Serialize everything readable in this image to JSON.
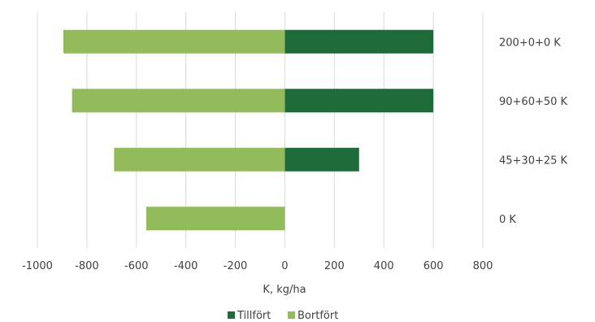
{
  "chart_data": {
    "type": "bar",
    "orientation": "horizontal",
    "stacked": true,
    "categories": [
      "200+0+0 K",
      "90+60+50 K",
      "45+30+25 K",
      "0 K"
    ],
    "series": [
      {
        "name": "Tillfört",
        "color": "#1e6b3a",
        "values": [
          600,
          600,
          300,
          0
        ]
      },
      {
        "name": "Bortfört",
        "color": "#92bb5b",
        "values": [
          -895,
          -860,
          -690,
          -560
        ]
      }
    ],
    "xlabel": "K, kg/ha",
    "xlim": [
      -1000,
      800
    ],
    "xticks": [
      -1000,
      -800,
      -600,
      -400,
      -200,
      0,
      200,
      400,
      600,
      800
    ],
    "grid": "vertical",
    "legend_position": "bottom"
  }
}
